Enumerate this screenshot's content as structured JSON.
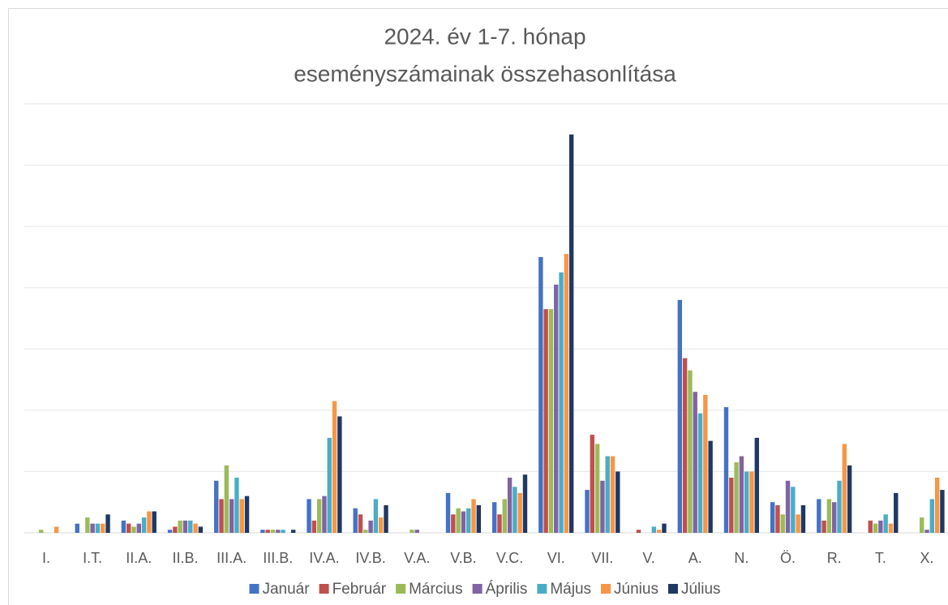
{
  "chart_data": {
    "type": "bar",
    "title": [
      "2024. év 1-7. hónap",
      "eseményszámainak összehasonlítása"
    ],
    "categories": [
      "I.",
      "I.T.",
      "II.A.",
      "II.B.",
      "III.A.",
      "III.B.",
      "IV.A.",
      "IV.B.",
      "V.A.",
      "V.B.",
      "V.C.",
      "VI.",
      "VII.",
      "V.",
      "A.",
      "N.",
      "Ö.",
      "R.",
      "T.",
      "X."
    ],
    "series": [
      {
        "name": "Január",
        "color": "#4472c4",
        "values": [
          0,
          1.5,
          2,
          0.5,
          8.5,
          0.5,
          5.5,
          4,
          0,
          6.5,
          5,
          45,
          7,
          0,
          38,
          20.5,
          5,
          5.5,
          0,
          0
        ]
      },
      {
        "name": "Február",
        "color": "#c0504d",
        "values": [
          0,
          0,
          1.5,
          1,
          5.5,
          0.5,
          2,
          3,
          0,
          3,
          3,
          36.5,
          16,
          0.5,
          28.5,
          9,
          4.5,
          2,
          2,
          0
        ]
      },
      {
        "name": "Március",
        "color": "#9bbb59",
        "values": [
          0.5,
          2.5,
          1,
          2,
          11,
          0.5,
          5.5,
          0.5,
          0.5,
          4,
          5.5,
          36.5,
          14.5,
          0,
          26.5,
          11.5,
          3,
          5.5,
          1.5,
          2.5
        ]
      },
      {
        "name": "Április",
        "color": "#8064a2",
        "values": [
          0,
          1.5,
          1.5,
          2,
          5.5,
          0.5,
          6,
          2,
          0.5,
          3.5,
          9,
          40.5,
          8.5,
          0,
          23,
          12.5,
          8.5,
          5,
          2,
          0.5
        ]
      },
      {
        "name": "Május",
        "color": "#4bacc6",
        "values": [
          0,
          1.5,
          2.5,
          2,
          9,
          0.5,
          15.5,
          5.5,
          0,
          4,
          7.5,
          42.5,
          12.5,
          1,
          19.5,
          10,
          7.5,
          8.5,
          3,
          5.5
        ]
      },
      {
        "name": "Június",
        "color": "#f79646",
        "values": [
          1,
          1.5,
          3.5,
          1.5,
          5.5,
          0,
          21.5,
          2.5,
          0,
          5.5,
          6.5,
          45.5,
          12.5,
          0.5,
          22.5,
          10,
          3,
          14.5,
          1.5,
          9
        ]
      },
      {
        "name": "Július",
        "color": "#1f3864",
        "values": [
          0,
          3,
          3.5,
          1,
          6,
          0.5,
          19,
          4.5,
          0,
          4.5,
          9.5,
          65,
          10,
          1.5,
          15,
          15.5,
          4.5,
          11,
          6.5,
          7
        ]
      }
    ],
    "ylim": [
      0,
      70
    ],
    "yticks": [
      0,
      10,
      20,
      30,
      40,
      50,
      60,
      70
    ],
    "grid": true,
    "legend": "bottom"
  }
}
